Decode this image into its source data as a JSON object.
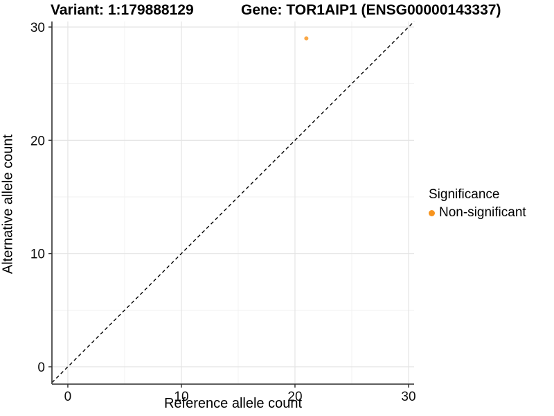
{
  "chart_data": {
    "type": "scatter",
    "titles": {
      "variant": "Variant: 1:179888129",
      "gene": "Gene: TOR1AIP1 (ENSG00000143337)"
    },
    "xlabel": "Reference allele count",
    "ylabel": "Alternative allele count",
    "xlim": [
      -1.4,
      30.49
    ],
    "ylim": [
      -1.53,
      30.49
    ],
    "x_major_ticks": [
      0,
      10,
      20,
      30
    ],
    "y_major_ticks": [
      0,
      10,
      20,
      30
    ],
    "x_minor_ticks": [
      5,
      15,
      25
    ],
    "y_minor_ticks": [
      5,
      15,
      25
    ],
    "grid": true,
    "identity_line": {
      "slope": 1,
      "intercept": 0,
      "style": "dashed",
      "color": "#000000"
    },
    "points": [
      {
        "x": 21,
        "y": 29,
        "group": "Non-significant"
      }
    ],
    "legend": {
      "title": "Significance",
      "position": "right",
      "entries": [
        {
          "label": "Non-significant",
          "color": "#F7941E"
        }
      ]
    },
    "colors": {
      "point": "#FAA846",
      "major_grid": "#E4E4E4",
      "minor_grid": "#F2F2F2",
      "axis_line": "#474747",
      "tick_mark": "#333333",
      "tick_text": "#0D0D0D"
    }
  }
}
